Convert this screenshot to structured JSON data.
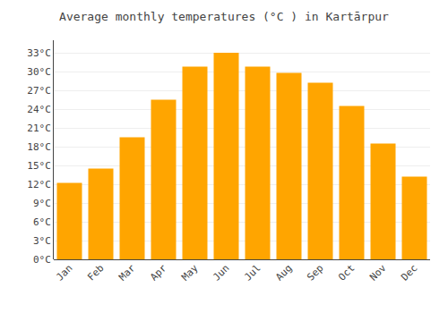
{
  "chart_data": {
    "type": "bar",
    "title": "Average monthly temperatures (°C ) in Kartārpur",
    "categories": [
      "Jan",
      "Feb",
      "Mar",
      "Apr",
      "May",
      "Jun",
      "Jul",
      "Aug",
      "Sep",
      "Oct",
      "Nov",
      "Dec"
    ],
    "values": [
      12.2,
      14.5,
      19.5,
      25.5,
      30.8,
      33.0,
      30.8,
      29.8,
      28.2,
      24.5,
      18.5,
      13.2
    ],
    "color": "#FFA500",
    "ylim": [
      0,
      35
    ],
    "yticks": [
      {
        "value": 0,
        "label": "0°C"
      },
      {
        "value": 3,
        "label": "3°C"
      },
      {
        "value": 6,
        "label": "6°C"
      },
      {
        "value": 9,
        "label": "9°C"
      },
      {
        "value": 12,
        "label": "12°C"
      },
      {
        "value": 15,
        "label": "15°C"
      },
      {
        "value": 18,
        "label": "18°C"
      },
      {
        "value": 21,
        "label": "21°C"
      },
      {
        "value": 24,
        "label": "24°C"
      },
      {
        "value": 27,
        "label": "27°C"
      },
      {
        "value": 30,
        "label": "30°C"
      },
      {
        "value": 33,
        "label": "33°C"
      }
    ],
    "grid": true
  }
}
